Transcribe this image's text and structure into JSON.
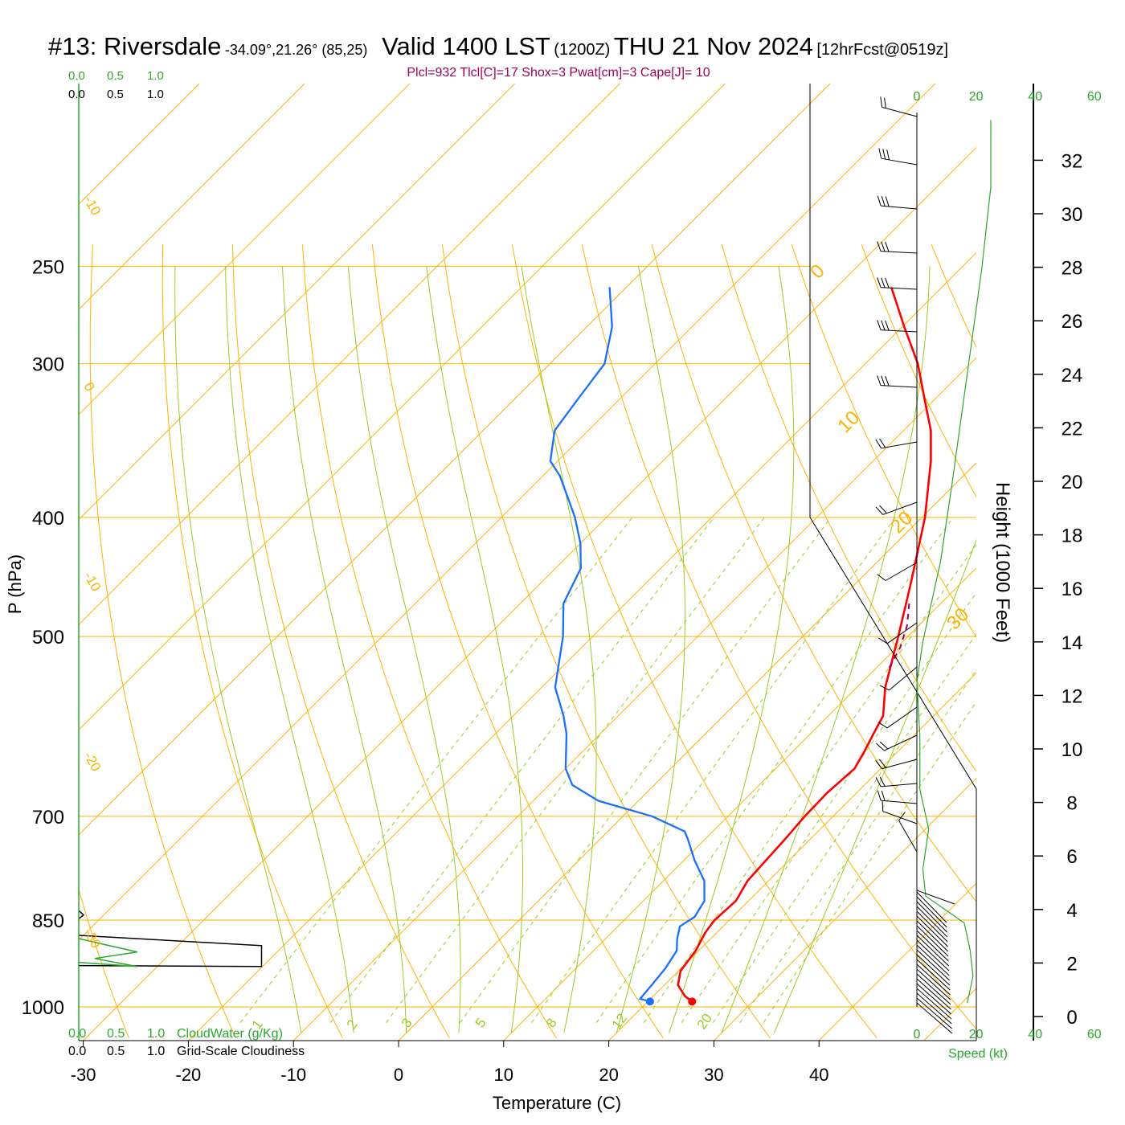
{
  "title": {
    "station": "#13: Riversdale",
    "coords": "-34.09°,21.26° (85,25)",
    "valid": "Valid 1400 LST",
    "utc": "(1200Z)",
    "date": "THU 21 Nov 2024",
    "forecast": "[12hrFcst@0519z]"
  },
  "params_line": "Plcl=932 Tlcl[C]=17 Shox=3 Pwat[cm]=3 Cape[J]= 10",
  "colors": {
    "temperature": "#ff0000",
    "dewpoint": "#1a6fff",
    "isotherm": "#ffb300",
    "dry_adiabat": "#ffb300",
    "moist_adiabat": "#99cc22",
    "mixing_ratio": "#99cc22",
    "green_text": "#2aa92a",
    "params_text": "#a0005a"
  },
  "chart_data": {
    "type": "skew-t",
    "xlabel": "Temperature (C)",
    "ylabel": "P (hPa)",
    "right_ylabel": "Height (1000 Feet)",
    "x_ticks": [
      -30,
      -20,
      -10,
      0,
      10,
      20,
      30,
      40
    ],
    "x_tick_labels": [
      "-30",
      "-20",
      "-10",
      "0",
      "10",
      "20",
      "30",
      "40"
    ],
    "pressure_ticks": [
      250,
      300,
      400,
      500,
      700,
      850,
      1000
    ],
    "pressure_tick_labels": [
      "250",
      "300",
      "400",
      "500",
      "700",
      "850",
      "1000"
    ],
    "height_ticks": [
      0,
      2,
      4,
      6,
      8,
      10,
      12,
      14,
      16,
      18,
      20,
      22,
      24,
      26,
      28,
      30,
      32
    ],
    "height_tick_labels": [
      "0",
      "2",
      "4",
      "6",
      "8",
      "10",
      "12",
      "14",
      "16",
      "18",
      "20",
      "22",
      "24",
      "26",
      "28",
      "30",
      "32"
    ],
    "cloud_scale_labels": [
      "0.0",
      "0.5",
      "1.0"
    ],
    "cloudwater_label": "CloudWater (g/Kg)",
    "cloudiness_label": "Grid-Scale Cloudiness",
    "speed_label": "Speed (kt)",
    "speed_ticks": [
      0,
      20,
      40,
      60
    ],
    "speed_tick_labels": [
      "0",
      "20",
      "40",
      "60"
    ],
    "isotherm_labels": [
      "-30",
      "-20",
      "-10",
      "0",
      "10",
      "20",
      "30"
    ],
    "mixing_ratio_labels": [
      "1",
      "2",
      "3",
      "5",
      "8",
      "12",
      "20"
    ],
    "temperature_profile": [
      {
        "p": 990,
        "t": 24.2
      },
      {
        "p": 980,
        "t": 23.0
      },
      {
        "p": 960,
        "t": 21.3
      },
      {
        "p": 935,
        "t": 20.2
      },
      {
        "p": 900,
        "t": 19.7
      },
      {
        "p": 870,
        "t": 18.9
      },
      {
        "p": 850,
        "t": 18.6
      },
      {
        "p": 820,
        "t": 18.8
      },
      {
        "p": 790,
        "t": 18.0
      },
      {
        "p": 760,
        "t": 17.8
      },
      {
        "p": 730,
        "t": 17.6
      },
      {
        "p": 700,
        "t": 17.3
      },
      {
        "p": 670,
        "t": 17.2
      },
      {
        "p": 640,
        "t": 17.5
      },
      {
        "p": 620,
        "t": 16.8
      },
      {
        "p": 600,
        "t": 16.0
      },
      {
        "p": 580,
        "t": 15.2
      },
      {
        "p": 550,
        "t": 12.7
      },
      {
        "p": 500,
        "t": 9.1
      },
      {
        "p": 470,
        "t": 6.7
      },
      {
        "p": 450,
        "t": 5.0
      },
      {
        "p": 400,
        "t": 0.3
      },
      {
        "p": 360,
        "t": -4.5
      },
      {
        "p": 340,
        "t": -7.4
      },
      {
        "p": 320,
        "t": -11.1
      },
      {
        "p": 300,
        "t": -15.0
      },
      {
        "p": 280,
        "t": -19.8
      },
      {
        "p": 260,
        "t": -24.8
      }
    ],
    "dewpoint_profile": [
      {
        "p": 990,
        "td": 20.2
      },
      {
        "p": 985,
        "td": 19.0
      },
      {
        "p": 960,
        "td": 18.8
      },
      {
        "p": 930,
        "td": 18.5
      },
      {
        "p": 900,
        "td": 17.9
      },
      {
        "p": 880,
        "td": 16.8
      },
      {
        "p": 860,
        "td": 15.9
      },
      {
        "p": 845,
        "td": 16.4
      },
      {
        "p": 820,
        "td": 15.8
      },
      {
        "p": 790,
        "td": 13.9
      },
      {
        "p": 760,
        "td": 11.0
      },
      {
        "p": 730,
        "td": 8.3
      },
      {
        "p": 720,
        "td": 7.3
      },
      {
        "p": 700,
        "td": 2.8
      },
      {
        "p": 680,
        "td": -3.8
      },
      {
        "p": 660,
        "td": -7.8
      },
      {
        "p": 640,
        "td": -10.0
      },
      {
        "p": 600,
        "td": -13.2
      },
      {
        "p": 580,
        "td": -15.2
      },
      {
        "p": 550,
        "td": -18.7
      },
      {
        "p": 500,
        "td": -22.8
      },
      {
        "p": 470,
        "td": -25.9
      },
      {
        "p": 440,
        "td": -27.6
      },
      {
        "p": 420,
        "td": -30.0
      },
      {
        "p": 400,
        "td": -33.0
      },
      {
        "p": 370,
        "td": -38.4
      },
      {
        "p": 360,
        "td": -40.7
      },
      {
        "p": 340,
        "td": -43.2
      },
      {
        "p": 320,
        "td": -44.0
      },
      {
        "p": 300,
        "td": -44.8
      },
      {
        "p": 280,
        "td": -47.6
      },
      {
        "p": 260,
        "td": -51.6
      }
    ],
    "surface": {
      "t": 24.2,
      "td": 20.2
    },
    "parcel_path": [
      {
        "p": 470,
        "t": 7.0
      },
      {
        "p": 490,
        "t": 8.9
      },
      {
        "p": 510,
        "t": 10.3
      },
      {
        "p": 530,
        "t": 11.2
      }
    ],
    "cloud_layer": {
      "top_hpa": 880,
      "bottom_hpa": 920,
      "cloudiness_max": 0.75,
      "cloudwater_max": 0.4
    },
    "wind_speed_profile": [
      {
        "ft": 500,
        "kt": 17
      },
      {
        "ft": 1500,
        "kt": 19
      },
      {
        "ft": 2500,
        "kt": 18
      },
      {
        "ft": 3500,
        "kt": 16
      },
      {
        "ft": 4500,
        "kt": 3
      },
      {
        "ft": 5500,
        "kt": 2
      },
      {
        "ft": 7000,
        "kt": 4
      },
      {
        "ft": 8500,
        "kt": 1
      },
      {
        "ft": 10500,
        "kt": 1
      },
      {
        "ft": 12500,
        "kt": 0
      },
      {
        "ft": 14000,
        "kt": 2
      },
      {
        "ft": 17000,
        "kt": 8
      },
      {
        "ft": 20000,
        "kt": 12
      },
      {
        "ft": 24000,
        "kt": 17
      },
      {
        "ft": 28000,
        "kt": 22
      },
      {
        "ft": 31000,
        "kt": 25
      },
      {
        "ft": 33500,
        "kt": 25
      }
    ]
  }
}
